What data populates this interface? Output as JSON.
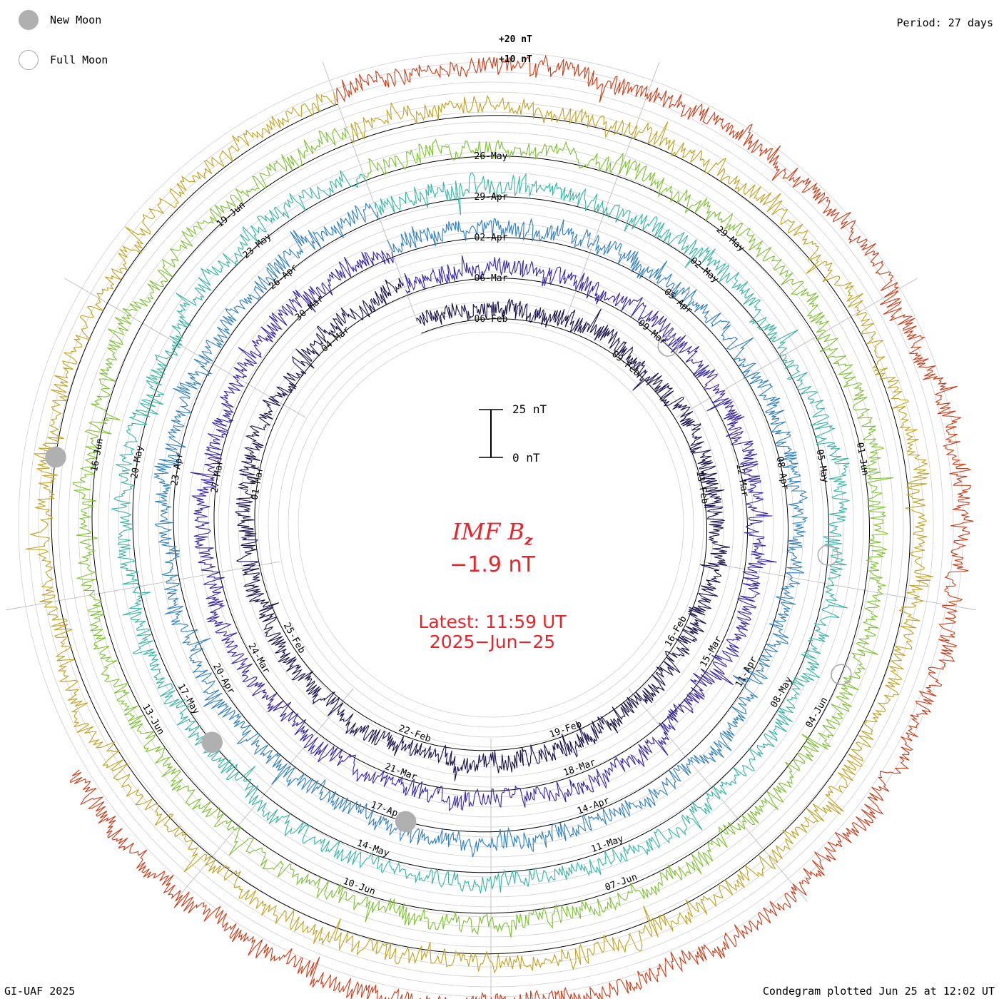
{
  "legend": {
    "new_moon_label": "New Moon",
    "full_moon_label": "Full Moon",
    "new_moon_color": "#b0b0b0",
    "full_moon_color": "#a8a8a8"
  },
  "header": {
    "period": "Period: 27 days"
  },
  "footer": {
    "left": "GI-UAF 2025",
    "right": "Condegram plotted Jun 25 at 12:02 UT"
  },
  "center": {
    "title_main": "IMF B",
    "title_sub": "z",
    "value": "−1.9 nT",
    "latest": "Latest: 11:59 UT",
    "date": "2025−Jun−25",
    "text_color": "#e8242a"
  },
  "scale": {
    "top_label": "25 nT",
    "bottom_label": "0 nT"
  },
  "outer_labels": {
    "plus20": "+20 nT",
    "plus10": "+10 nT"
  },
  "chart_data": {
    "type": "line",
    "subtype": "spiral-condegram",
    "title": "IMF Bz",
    "period_days": 27,
    "direction": "clockwise",
    "start_angle_deg": -20,
    "rotations": [
      {
        "name": "rotation-1",
        "color": "#1a0f4a",
        "dates": [
          "06-Feb",
          "09-Feb",
          "13-Feb",
          "16-Feb",
          "19-Feb",
          "22-Feb",
          "25-Feb",
          "01-Mar",
          "04-Mar"
        ]
      },
      {
        "name": "rotation-2",
        "color": "#3424a8",
        "dates": [
          "06-Mar",
          "09-Mar",
          "12-Mar",
          "15-Mar",
          "18-Mar",
          "21-Mar",
          "24-Mar",
          "27-Mar",
          "30-Mar"
        ]
      },
      {
        "name": "rotation-3",
        "color": "#2f7fc0",
        "dates": [
          "02-Apr",
          "05-Apr",
          "08-Apr",
          "11-Apr",
          "14-Apr",
          "17-Apr",
          "20-Apr",
          "23-Apr",
          "26-Apr"
        ]
      },
      {
        "name": "rotation-4",
        "color": "#35b5a5",
        "dates": [
          "29-Apr",
          "02-May",
          "05-May",
          "08-May",
          "11-May",
          "14-May",
          "17-May",
          "20-May",
          "23-May"
        ]
      },
      {
        "name": "rotation-5",
        "color": "#7cc12f",
        "dates": [
          "26-May",
          "29-May",
          "01-Jun",
          "04-Jun",
          "07-Jun",
          "10-Jun",
          "13-Jun",
          "16-Jun",
          "19-Jun"
        ]
      },
      {
        "name": "rotation-6",
        "color": "#c0a21e",
        "dates": []
      },
      {
        "name": "rotation-7",
        "color": "#cc3a16",
        "dates": []
      }
    ],
    "visible_date_labels": [
      "06-Mar",
      "08-Mar",
      "09-Mar",
      "05-Apr",
      "02-Apr",
      "29-Apr",
      "26-May",
      "29-May",
      "02-May",
      "01-Jun",
      "04-Jun",
      "05-May",
      "08-May",
      "08-Apr",
      "11-Apr",
      "12-Mar",
      "15-Mar",
      "16-Feb",
      "19-Feb",
      "22-Feb",
      "25-Feb",
      "24-Mar",
      "21-Mar",
      "17-Apr",
      "14-May",
      "11-May",
      "14-Apr",
      "18-Mar",
      "07-Jun",
      "10-Jun",
      "13-Jun",
      "17-May",
      "20-Apr",
      "23-Apr",
      "20-May",
      "16-Jun",
      "19-Jun",
      "23-May",
      "26-Apr",
      "30-Mar",
      "03-Mar",
      "27-Mar",
      "28-Feb"
    ],
    "units": "nT",
    "latest_value": -1.9,
    "latest_time": "11:59 UT",
    "latest_date": "2025-Jun-25",
    "scale_nT": [
      0,
      25
    ],
    "outer_reference": [
      "+20 nT",
      "+10 nT"
    ]
  }
}
